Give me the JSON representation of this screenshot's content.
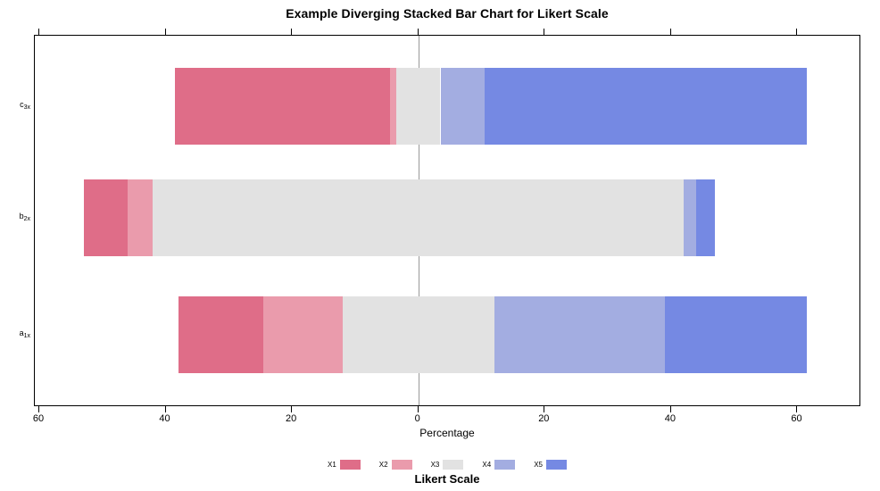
{
  "chart_data": {
    "type": "bar",
    "variant": "diverging-stacked-horizontal",
    "title": "Example Diverging Stacked Bar Chart for Likert Scale",
    "xlabel": "Percentage",
    "legend_title": "Likert Scale",
    "legend_position": "bottom",
    "grid": "off",
    "zero_line_color": "#999999",
    "axis_color": "#000000",
    "x_axis": {
      "tick_values": [
        -60,
        -40,
        -20,
        0,
        20,
        40,
        60
      ],
      "tick_labels": [
        "60",
        "40",
        "20",
        "0",
        "20",
        "40",
        "60"
      ],
      "range": [
        -60.7,
        70.1
      ]
    },
    "series": [
      {
        "name": "X1",
        "color": "#df6d88"
      },
      {
        "name": "X2",
        "color": "#ea9bac"
      },
      {
        "name": "X3",
        "color": "#e2e2e2"
      },
      {
        "name": "X4",
        "color": "#a3ade1"
      },
      {
        "name": "X5",
        "color": "#7589e3"
      }
    ],
    "neutral_series_index": 2,
    "rows": [
      {
        "label": "c3x",
        "label_base": "c",
        "label_sub": "3x",
        "values": [
          34,
          1,
          7,
          7,
          51
        ]
      },
      {
        "label": "b2x",
        "label_base": "b",
        "label_sub": "2x",
        "values": [
          7,
          4,
          84,
          2,
          3
        ]
      },
      {
        "label": "a1x",
        "label_base": "a",
        "label_sub": "1x",
        "values": [
          13.5,
          12.5,
          24,
          27,
          22.5
        ]
      }
    ],
    "rows_note": "values are percentages per Likert level X1..X5; neutral level X3 is split evenly across the zero line"
  }
}
